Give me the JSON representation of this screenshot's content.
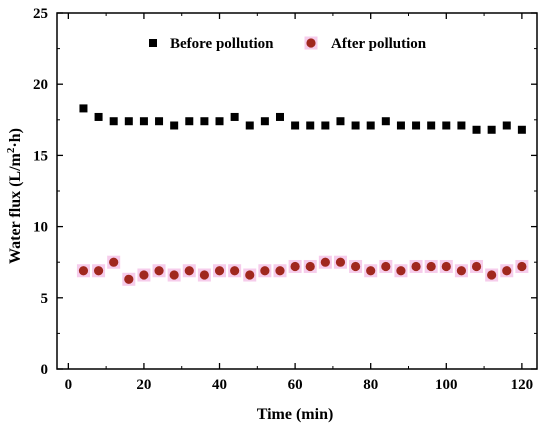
{
  "chart_data": {
    "type": "scatter",
    "title": "",
    "xlabel": "Time (min)",
    "ylabel_main": "Water flux (L/m",
    "ylabel_sup": "2",
    "ylabel_tail": "·h)",
    "xlim": [
      -3,
      124
    ],
    "ylim": [
      0,
      25
    ],
    "xticks": [
      0,
      20,
      40,
      60,
      80,
      100,
      120
    ],
    "xtick_labels": [
      "0",
      "20",
      "40",
      "60",
      "80",
      "100",
      "120"
    ],
    "yticks": [
      0,
      5,
      10,
      15,
      20,
      25
    ],
    "ytick_labels": [
      "0",
      "5",
      "10",
      "15",
      "20",
      "25"
    ],
    "grid": false,
    "legend_placement": "top-center",
    "x": [
      4,
      8,
      12,
      16,
      20,
      24,
      28,
      32,
      36,
      40,
      44,
      48,
      52,
      56,
      60,
      64,
      68,
      72,
      76,
      80,
      84,
      88,
      92,
      96,
      100,
      104,
      108,
      112,
      116,
      120
    ],
    "series": [
      {
        "name": "Before pollution",
        "marker": "square",
        "color": "#000000",
        "values": [
          18.3,
          17.7,
          17.4,
          17.4,
          17.4,
          17.4,
          17.1,
          17.4,
          17.4,
          17.4,
          17.7,
          17.1,
          17.4,
          17.7,
          17.1,
          17.1,
          17.1,
          17.4,
          17.1,
          17.1,
          17.4,
          17.1,
          17.1,
          17.1,
          17.1,
          17.1,
          16.8,
          16.8,
          17.1,
          16.8
        ]
      },
      {
        "name": "After pollution",
        "marker": "circle",
        "color": "#a0281e",
        "values": [
          6.9,
          6.9,
          7.5,
          6.3,
          6.6,
          6.9,
          6.6,
          6.9,
          6.6,
          6.9,
          6.9,
          6.6,
          6.9,
          6.9,
          7.2,
          7.2,
          7.5,
          7.5,
          7.2,
          6.9,
          7.2,
          6.9,
          7.2,
          7.2,
          7.2,
          6.9,
          7.2,
          6.6,
          6.9,
          7.2
        ]
      }
    ]
  }
}
